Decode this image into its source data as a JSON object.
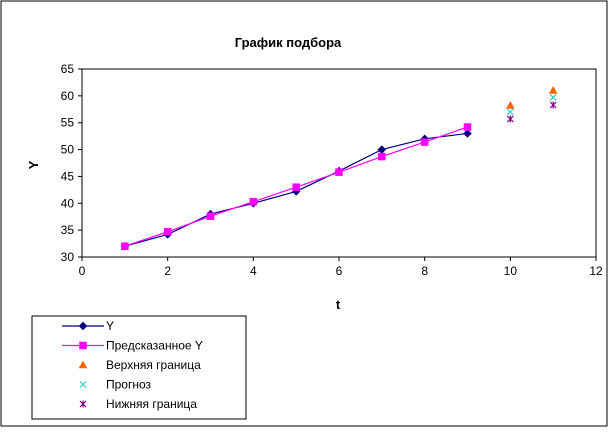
{
  "chart_data": {
    "type": "scatter",
    "title": "График подбора",
    "xlabel": "t",
    "ylabel": "Y",
    "xlim": [
      0,
      12
    ],
    "ylim": [
      30,
      65
    ],
    "xticks": [
      0,
      2,
      4,
      6,
      8,
      10,
      12
    ],
    "yticks": [
      30,
      35,
      40,
      45,
      50,
      55,
      60,
      65
    ],
    "grid": false,
    "legend_position": "bottom-left",
    "series": [
      {
        "name": "Y",
        "color": "#000080",
        "marker": "diamond",
        "line": true,
        "x": [
          1,
          2,
          3,
          4,
          5,
          6,
          7,
          8,
          9
        ],
        "y": [
          32,
          34.2,
          38,
          40,
          42.2,
          46,
          50,
          52,
          53
        ]
      },
      {
        "name": "Предсказанное Y",
        "color": "#FF00FF",
        "marker": "square",
        "line": true,
        "x": [
          1,
          2,
          3,
          4,
          5,
          6,
          7,
          8,
          9
        ],
        "y": [
          32,
          34.7,
          37.6,
          40.3,
          43,
          45.8,
          48.7,
          51.4,
          54.2
        ]
      },
      {
        "name": "Верхняя граница",
        "color": "#FF6600",
        "marker": "triangle",
        "line": false,
        "x": [
          10,
          11
        ],
        "y": [
          58.2,
          61
        ]
      },
      {
        "name": "Прогноз",
        "color": "#33CCCC",
        "marker": "x",
        "line": false,
        "x": [
          10,
          11
        ],
        "y": [
          57,
          59.7
        ]
      },
      {
        "name": "Нижняя граница",
        "color": "#800080",
        "marker": "star",
        "line": false,
        "x": [
          10,
          11
        ],
        "y": [
          55.7,
          58.3
        ]
      }
    ]
  }
}
